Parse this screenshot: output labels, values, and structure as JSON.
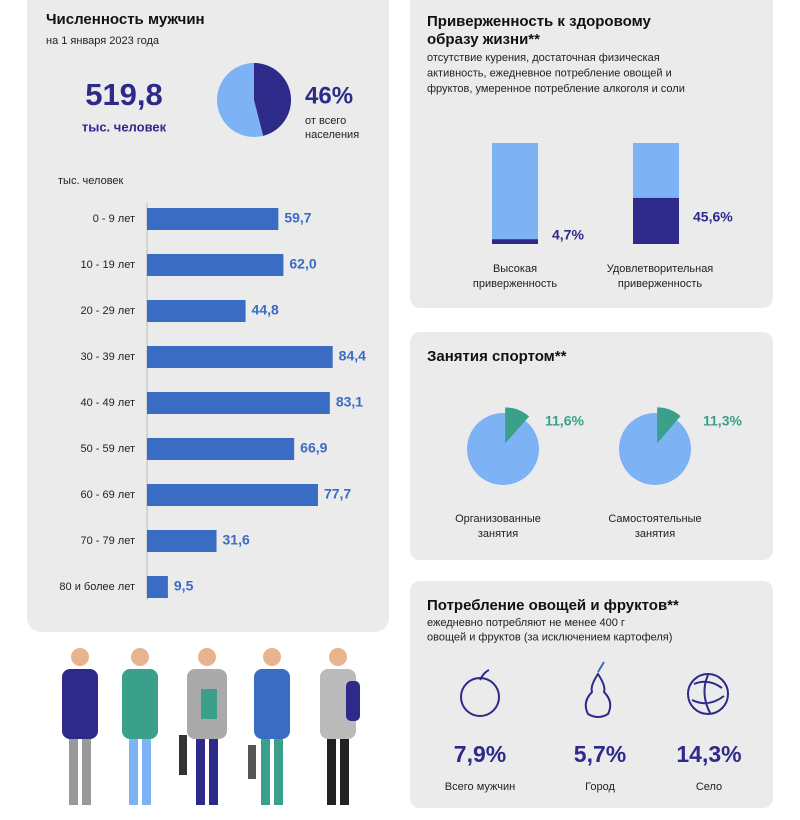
{
  "population": {
    "title": "Численность мужчин",
    "subtitle": "на 1 января 2023 года",
    "total": "519,8",
    "total_unit": "тыс. человек"
  },
  "chart_data": [
    {
      "type": "pie",
      "values": [
        46
      ],
      "value_labels": [
        "46%"
      ],
      "annotation_lines": [
        "от всего",
        "населения"
      ],
      "color": "#2e2a8a",
      "background_color": "#7db3f5",
      "exploded": false
    },
    {
      "type": "bar",
      "orientation": "horizontal",
      "axis_label": "тыс. человек",
      "categories": [
        "0 - 9 лет",
        "10 - 19 лет",
        "20 - 29 лет",
        "30 - 39 лет",
        "40 - 49 лет",
        "50 - 59 лет",
        "60 - 69 лет",
        "70  - 79 лет",
        "80 и более лет"
      ],
      "values": [
        59.7,
        62.0,
        44.8,
        84.4,
        83.1,
        66.9,
        77.7,
        31.6,
        9.5
      ],
      "value_labels": [
        "59,7",
        "62,0",
        "44,8",
        "84,4",
        "83,1",
        "66,9",
        "77,7",
        "31,6",
        "9,5"
      ],
      "color": "#3a6cc4",
      "xlim": [
        0,
        100
      ]
    },
    {
      "type": "column",
      "title_lines": [
        "Приверженность к здоровому",
        "образу жизни**"
      ],
      "subtitle_lines": [
        "отсутствие курения, достаточная физическая",
        "активность, ежедневное потребление  овощей и",
        "фруктов, умеренное потребление  алкоголя и соли"
      ],
      "categories": [
        "Высокая приверженность",
        "Удовлетворительная приверженность"
      ],
      "values": [
        4.7,
        45.6
      ],
      "value_labels": [
        "4,7%",
        "45,6%"
      ],
      "color": "#2e2a8a",
      "background_color": "#7db3f5",
      "ylim": [
        0,
        100
      ]
    },
    {
      "type": "pie",
      "title": "Занятия спортом**",
      "categories": [
        "Организованные занятия",
        "Самостоятельные занятия"
      ],
      "values": [
        11.6,
        11.3
      ],
      "value_labels": [
        "11,6%",
        "11,3%"
      ],
      "color": "#3aa08a",
      "background_color": "#7db3f5",
      "exploded": true
    }
  ],
  "consumption": {
    "title": "Потребление овощей и фруктов**",
    "subtitle_lines": [
      "ежедневно потребляют  не менее 400 г",
      "овощей и фруктов (за исключением  картофеля)"
    ],
    "items": [
      {
        "value": "7,9%",
        "label": "Всего мужчин"
      },
      {
        "value": "5,7%",
        "label": "Город"
      },
      {
        "value": "14,3%",
        "label": "Село"
      }
    ]
  }
}
